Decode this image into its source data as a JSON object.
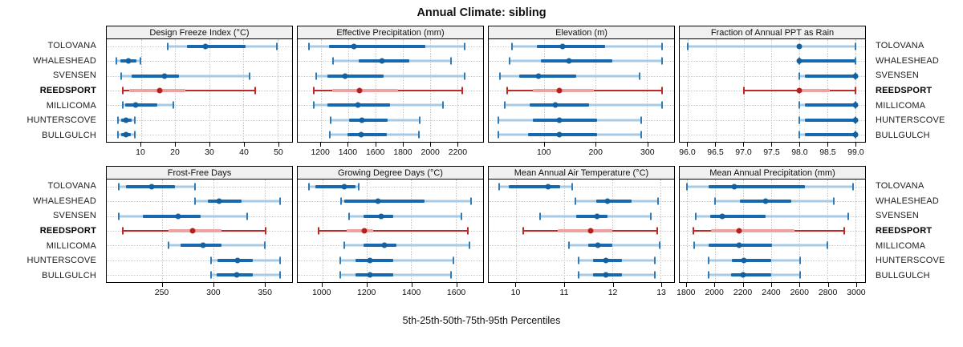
{
  "title": "Annual Climate: sibling",
  "caption": "5th-25th-50th-75th-95th Percentiles",
  "colors": {
    "blue_dark": "#1668b1",
    "blue_light": "#a8cbe5",
    "blue_cap": "#2f7cb8",
    "blue_dot": "#15609f",
    "red_dark": "#bf2824",
    "red_light": "#eba4a1",
    "red_dot": "#b6211d",
    "grid": "#c9c9c9",
    "header_bg": "#f0f0f0",
    "panel_border": "#000000"
  },
  "chart_data": {
    "type": "percentile_dotplot",
    "stations": [
      "TOLOVANA",
      "WHALESHEAD",
      "SVENSEN",
      "REEDSPORT",
      "MILLICOMA",
      "HUNTERSCOVE",
      "BULLGULCH"
    ],
    "highlight_station": "REEDSPORT",
    "percentile_labels": [
      "5th",
      "25th",
      "50th",
      "75th",
      "95th"
    ],
    "panels": [
      {
        "title": "Design Freeze Index (°C)",
        "row": 0,
        "xlim": [
          0,
          54.2
        ],
        "ticks": [
          10,
          20,
          30,
          40,
          50
        ],
        "tick_labels": [
          "10",
          "20",
          "30",
          "40",
          "50"
        ],
        "series": [
          {
            "station": "TOLOVANA",
            "p": [
              17.8,
              23.5,
              28.8,
              40.5,
              49.8
            ]
          },
          {
            "station": "WHALESHEAD",
            "p": [
              2.9,
              3.9,
              6.3,
              8.8,
              9.9
            ]
          },
          {
            "station": "SVENSEN",
            "p": [
              4.3,
              7.2,
              16.8,
              21.2,
              41.8
            ]
          },
          {
            "station": "REEDSPORT",
            "p": [
              4.7,
              6.5,
              15.5,
              23.0,
              43.5
            ]
          },
          {
            "station": "MILLICOMA",
            "p": [
              4.6,
              5.5,
              8.5,
              14.7,
              19.5
            ]
          },
          {
            "station": "HUNTERSCOVE",
            "p": [
              3.4,
              4.3,
              5.7,
              7.2,
              8.3
            ]
          },
          {
            "station": "BULLGULCH",
            "p": [
              3.4,
              4.3,
              5.6,
              7.1,
              8.3
            ]
          }
        ]
      },
      {
        "title": "Effective Precipitation (mm)",
        "row": 0,
        "xlim": [
          1030,
          2390
        ],
        "ticks": [
          1200,
          1400,
          1600,
          1800,
          2000,
          2200
        ],
        "tick_labels": [
          "1200",
          "1400",
          "1600",
          "1800",
          "2000",
          "2200"
        ],
        "series": [
          {
            "station": "TOLOVANA",
            "p": [
              1110,
              1260,
              1445,
              1965,
              2255
            ]
          },
          {
            "station": "WHALESHEAD",
            "p": [
              1290,
              1480,
              1650,
              1850,
              2155
            ]
          },
          {
            "station": "SVENSEN",
            "p": [
              1165,
              1245,
              1375,
              1660,
              2255
            ]
          },
          {
            "station": "REEDSPORT",
            "p": [
              1145,
              1285,
              1485,
              1765,
              2235
            ]
          },
          {
            "station": "MILLICOMA",
            "p": [
              1145,
              1245,
              1470,
              1705,
              2095
            ]
          },
          {
            "station": "HUNTERSCOVE",
            "p": [
              1270,
              1405,
              1500,
              1690,
              1925
            ]
          },
          {
            "station": "BULLGULCH",
            "p": [
              1265,
              1395,
              1495,
              1685,
              1920
            ]
          }
        ]
      },
      {
        "title": "Elevation (m)",
        "row": 0,
        "xlim": [
          -8,
          353
        ],
        "ticks": [
          100,
          200,
          300
        ],
        "tick_labels": [
          "100",
          "200",
          "300"
        ],
        "series": [
          {
            "station": "TOLOVANA",
            "p": [
              37,
              85,
              136,
              218,
              330
            ]
          },
          {
            "station": "WHALESHEAD",
            "p": [
              33,
              93,
              148,
              233,
              330
            ]
          },
          {
            "station": "SVENSEN",
            "p": [
              14,
              52,
              89,
              162,
              286
            ]
          },
          {
            "station": "REEDSPORT",
            "p": [
              28,
              78,
              130,
              196,
              330
            ]
          },
          {
            "station": "MILLICOMA",
            "p": [
              23,
              72,
              121,
              187,
              330
            ]
          },
          {
            "station": "HUNTERSCOVE",
            "p": [
              11,
              78,
              129,
              203,
              289
            ]
          },
          {
            "station": "BULLGULCH",
            "p": [
              10,
              69,
              129,
              203,
              289
            ]
          }
        ]
      },
      {
        "title": "Fraction of Annual PPT as Rain",
        "row": 0,
        "xlim": [
          95.85,
          99.18
        ],
        "ticks": [
          96.0,
          96.5,
          97.0,
          97.5,
          98.0,
          98.5,
          99.0
        ],
        "tick_labels": [
          "96.0",
          "96.5",
          "97.0",
          "97.5",
          "98.0",
          "98.5",
          "99.0"
        ],
        "series": [
          {
            "station": "TOLOVANA",
            "p": [
              96.0,
              98.0,
              98.0,
              98.0,
              99.0
            ]
          },
          {
            "station": "WHALESHEAD",
            "p": [
              98.0,
              98.0,
              98.0,
              99.0,
              99.0
            ]
          },
          {
            "station": "SVENSEN",
            "p": [
              98.0,
              98.1,
              99.0,
              99.0,
              99.0
            ]
          },
          {
            "station": "REEDSPORT",
            "p": [
              97.0,
              98.0,
              98.0,
              98.55,
              99.0
            ]
          },
          {
            "station": "MILLICOMA",
            "p": [
              98.0,
              98.1,
              99.0,
              99.0,
              99.0
            ]
          },
          {
            "station": "HUNTERSCOVE",
            "p": [
              98.0,
              98.1,
              99.0,
              99.0,
              99.0
            ]
          },
          {
            "station": "BULLGULCH",
            "p": [
              98.0,
              98.1,
              99.0,
              99.0,
              99.0
            ]
          }
        ]
      },
      {
        "title": "Frost-Free Days",
        "row": 1,
        "xlim": [
          196,
          377
        ],
        "ticks": [
          250,
          300,
          350
        ],
        "tick_labels": [
          "250",
          "300",
          "350"
        ],
        "series": [
          {
            "station": "TOLOVANA",
            "p": [
              208,
              215,
              240,
              263,
              282
            ]
          },
          {
            "station": "WHALESHEAD",
            "p": [
              282,
              295,
              306,
              328,
              365
            ]
          },
          {
            "station": "SVENSEN",
            "p": [
              208,
              231,
              266,
              288,
              333
            ]
          },
          {
            "station": "REEDSPORT",
            "p": [
              212,
              256,
              280,
              308,
              351
            ]
          },
          {
            "station": "MILLICOMA",
            "p": [
              256,
              268,
              290,
              308,
              350
            ]
          },
          {
            "station": "HUNTERSCOVE",
            "p": [
              298,
              304,
              324,
              339,
              365
            ]
          },
          {
            "station": "BULLGULCH",
            "p": [
              298,
              303,
              323,
              339,
              365
            ]
          }
        ]
      },
      {
        "title": "Growing Degree Days (°C)",
        "row": 1,
        "xlim": [
          890,
          1723
        ],
        "ticks": [
          1000,
          1200,
          1400,
          1600
        ],
        "tick_labels": [
          "1000",
          "1200",
          "1400",
          "1600"
        ],
        "series": [
          {
            "station": "TOLOVANA",
            "p": [
              940,
              970,
              1100,
              1150,
              1165
            ]
          },
          {
            "station": "WHALESHEAD",
            "p": [
              1085,
              1100,
              1250,
              1460,
              1670
            ]
          },
          {
            "station": "SVENSEN",
            "p": [
              1120,
              1185,
              1265,
              1320,
              1625
            ]
          },
          {
            "station": "REEDSPORT",
            "p": [
              985,
              1110,
              1190,
              1230,
              1655
            ]
          },
          {
            "station": "MILLICOMA",
            "p": [
              1100,
              1185,
              1280,
              1335,
              1660
            ]
          },
          {
            "station": "HUNTERSCOVE",
            "p": [
              1080,
              1150,
              1215,
              1320,
              1590
            ]
          },
          {
            "station": "BULLGULCH",
            "p": [
              1080,
              1150,
              1215,
              1320,
              1580
            ]
          }
        ]
      },
      {
        "title": "Mean Annual Air Temperature (°C)",
        "row": 1,
        "xlim": [
          9.43,
          13.28
        ],
        "ticks": [
          10,
          11,
          12,
          13
        ],
        "tick_labels": [
          "10",
          "11",
          "12",
          "13"
        ],
        "series": [
          {
            "station": "TOLOVANA",
            "p": [
              9.64,
              9.85,
              10.67,
              10.91,
              11.16
            ]
          },
          {
            "station": "WHALESHEAD",
            "p": [
              11.23,
              11.67,
              11.9,
              12.4,
              12.95
            ]
          },
          {
            "station": "SVENSEN",
            "p": [
              10.5,
              11.25,
              11.68,
              11.9,
              12.8
            ]
          },
          {
            "station": "REEDSPORT",
            "p": [
              10.15,
              10.87,
              11.55,
              12.0,
              12.93
            ]
          },
          {
            "station": "MILLICOMA",
            "p": [
              11.1,
              11.5,
              11.7,
              12.0,
              12.98
            ]
          },
          {
            "station": "HUNTERSCOVE",
            "p": [
              11.3,
              11.6,
              11.87,
              12.2,
              12.88
            ]
          },
          {
            "station": "BULLGULCH",
            "p": [
              11.3,
              11.6,
              11.87,
              12.2,
              12.88
            ]
          }
        ]
      },
      {
        "title": "Mean Annual Precipitation (mm)",
        "row": 1,
        "xlim": [
          1750,
          3068
        ],
        "ticks": [
          1800,
          2000,
          2200,
          2400,
          2600,
          2800,
          3000
        ],
        "tick_labels": [
          "1800",
          "2000",
          "2200",
          "2400",
          "2600",
          "2800",
          "3000"
        ],
        "series": [
          {
            "station": "TOLOVANA",
            "p": [
              1800,
              1955,
              2140,
              2640,
              2985
            ]
          },
          {
            "station": "WHALESHEAD",
            "p": [
              2000,
              2180,
              2360,
              2545,
              2845
            ]
          },
          {
            "station": "SVENSEN",
            "p": [
              1865,
              1965,
              2050,
              2360,
              2950
            ]
          },
          {
            "station": "REEDSPORT",
            "p": [
              1845,
              1975,
              2175,
              2565,
              2920
            ]
          },
          {
            "station": "MILLICOMA",
            "p": [
              1855,
              1955,
              2170,
              2405,
              2800
            ]
          },
          {
            "station": "HUNTERSCOVE",
            "p": [
              1955,
              2120,
              2205,
              2400,
              2605
            ]
          },
          {
            "station": "BULLGULCH",
            "p": [
              1955,
              2115,
              2200,
              2400,
              2605
            ]
          }
        ]
      }
    ]
  }
}
